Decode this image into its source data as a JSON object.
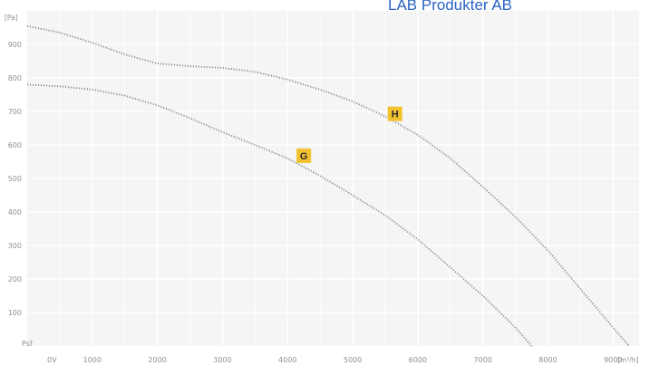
{
  "watermark": {
    "text": "LAB Produkter AB",
    "color": "#2a63c4"
  },
  "chart_data": {
    "type": "line",
    "xlabel": "[m³/h]",
    "ylabel": "[Pa]",
    "origin_x_label": "0V",
    "origin_y_label": "Psf",
    "xlim": [
      0,
      9400
    ],
    "ylim": [
      0,
      1000
    ],
    "x_ticks": [
      "1000",
      "2000",
      "3000",
      "4000",
      "5000",
      "6000",
      "7000",
      "8000",
      "9000"
    ],
    "y_ticks": [
      "100",
      "200",
      "300",
      "400",
      "500",
      "600",
      "700",
      "800",
      "900"
    ],
    "grid": true,
    "series": [
      {
        "name": "H",
        "color": "#8a8a8a",
        "points": [
          [
            0,
            955
          ],
          [
            500,
            935
          ],
          [
            1000,
            905
          ],
          [
            1500,
            870
          ],
          [
            2000,
            843
          ],
          [
            2500,
            835
          ],
          [
            3000,
            830
          ],
          [
            3500,
            818
          ],
          [
            4000,
            795
          ],
          [
            4500,
            765
          ],
          [
            5000,
            730
          ],
          [
            5500,
            685
          ],
          [
            6000,
            630
          ],
          [
            6500,
            560
          ],
          [
            7000,
            475
          ],
          [
            7500,
            385
          ],
          [
            8000,
            285
          ],
          [
            8500,
            170
          ],
          [
            9000,
            55
          ],
          [
            9250,
            0
          ]
        ]
      },
      {
        "name": "G",
        "color": "#8a8a8a",
        "points": [
          [
            0,
            780
          ],
          [
            500,
            775
          ],
          [
            1000,
            765
          ],
          [
            1500,
            747
          ],
          [
            2000,
            718
          ],
          [
            2500,
            680
          ],
          [
            3000,
            638
          ],
          [
            3500,
            600
          ],
          [
            4000,
            560
          ],
          [
            4500,
            508
          ],
          [
            5000,
            450
          ],
          [
            5500,
            390
          ],
          [
            6000,
            318
          ],
          [
            6500,
            235
          ],
          [
            7000,
            150
          ],
          [
            7500,
            55
          ],
          [
            7750,
            0
          ]
        ]
      }
    ],
    "labels": [
      {
        "text": "H",
        "x": 5650,
        "y": 690
      },
      {
        "text": "G",
        "x": 4250,
        "y": 565
      }
    ],
    "label_box_color": "#f2c12e"
  }
}
